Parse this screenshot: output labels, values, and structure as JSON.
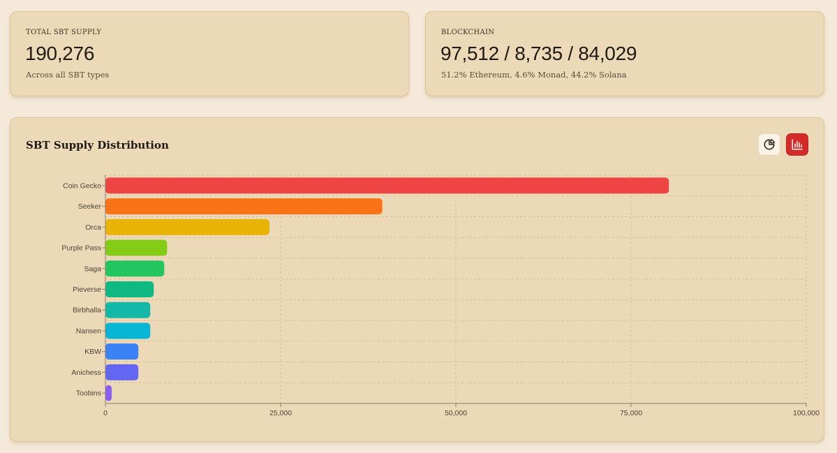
{
  "stats": {
    "total": {
      "label": "TOTAL SBT SUPPLY",
      "value": "190,276",
      "sub": "Across all SBT types"
    },
    "blockchain": {
      "label": "BLOCKCHAIN",
      "value": "97,512 / 8,735 / 84,029",
      "sub": "51.2% Ethereum, 4.6% Monad, 44.2% Solana"
    }
  },
  "chart_card": {
    "title": "SBT Supply Distribution",
    "toggles": [
      {
        "name": "pie",
        "icon": "pie-chart-icon",
        "active": false
      },
      {
        "name": "bar",
        "icon": "bar-chart-icon",
        "active": true,
        "active_color": "#d42a2a"
      }
    ]
  },
  "chart_data": {
    "type": "bar",
    "orientation": "horizontal",
    "title": "SBT Supply Distribution",
    "categories": [
      "Coin Gecko",
      "Seeker",
      "Orca",
      "Purple Pass",
      "Saga",
      "Pieverse",
      "Birbhalla",
      "Nansen",
      "KBW",
      "Anichess",
      "Toobins"
    ],
    "values": [
      80400,
      39500,
      23400,
      8800,
      8400,
      6900,
      6400,
      6400,
      4700,
      4700,
      900
    ],
    "colors": [
      "#ef4444",
      "#f97316",
      "#eab308",
      "#84cc16",
      "#22c55e",
      "#10b981",
      "#14b8a6",
      "#06b6d4",
      "#3b82f6",
      "#6366f1",
      "#8b5cf6"
    ],
    "xlim": [
      0,
      100000
    ],
    "xticks": [
      0,
      25000,
      50000,
      75000,
      100000
    ],
    "xtick_labels": [
      "0",
      "25,000",
      "50,000",
      "75,000",
      "100,000"
    ],
    "grid": true
  }
}
